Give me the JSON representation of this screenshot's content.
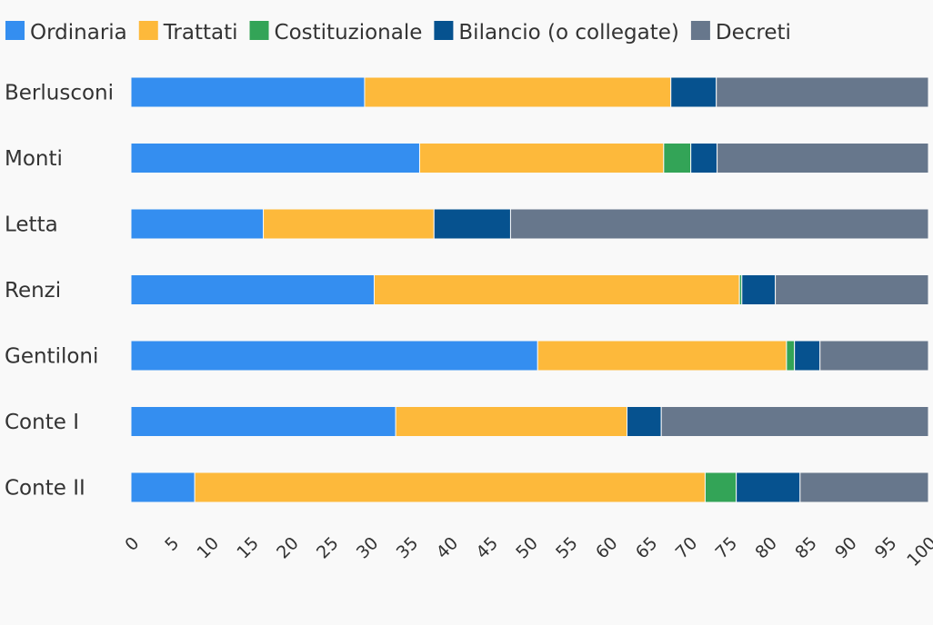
{
  "chart_data": {
    "type": "bar",
    "orientation": "horizontal",
    "stacked": true,
    "categories": [
      "Berlusconi",
      "Monti",
      "Letta",
      "Renzi",
      "Gentiloni",
      "Conte I",
      "Conte II"
    ],
    "series": [
      {
        "name": "Ordinaria",
        "color": "#348ef0",
        "values": [
          29.3,
          36.2,
          16.6,
          30.5,
          51.0,
          33.2,
          8.0
        ]
      },
      {
        "name": "Trattati",
        "color": "#fdb93b",
        "values": [
          38.4,
          30.6,
          21.4,
          45.8,
          31.2,
          29.0,
          64.0
        ]
      },
      {
        "name": "Costituzionale",
        "color": "#33a457",
        "values": [
          0,
          3.4,
          0,
          0.3,
          1.0,
          0,
          3.9
        ]
      },
      {
        "name": "Bilancio (o collegate)",
        "color": "#06528f",
        "values": [
          5.7,
          3.3,
          9.6,
          4.2,
          3.2,
          4.3,
          8.0
        ]
      },
      {
        "name": "Decreti",
        "color": "#67778c",
        "values": [
          26.6,
          26.5,
          52.4,
          19.2,
          13.6,
          33.5,
          16.1
        ]
      }
    ],
    "xlim": [
      0,
      100
    ],
    "xticks": [
      0,
      5,
      10,
      15,
      20,
      25,
      30,
      35,
      40,
      45,
      50,
      55,
      60,
      65,
      70,
      75,
      80,
      85,
      90,
      95,
      100
    ],
    "title": "",
    "xlabel": "",
    "ylabel": "",
    "grid": false,
    "legend_position": "top-left"
  }
}
